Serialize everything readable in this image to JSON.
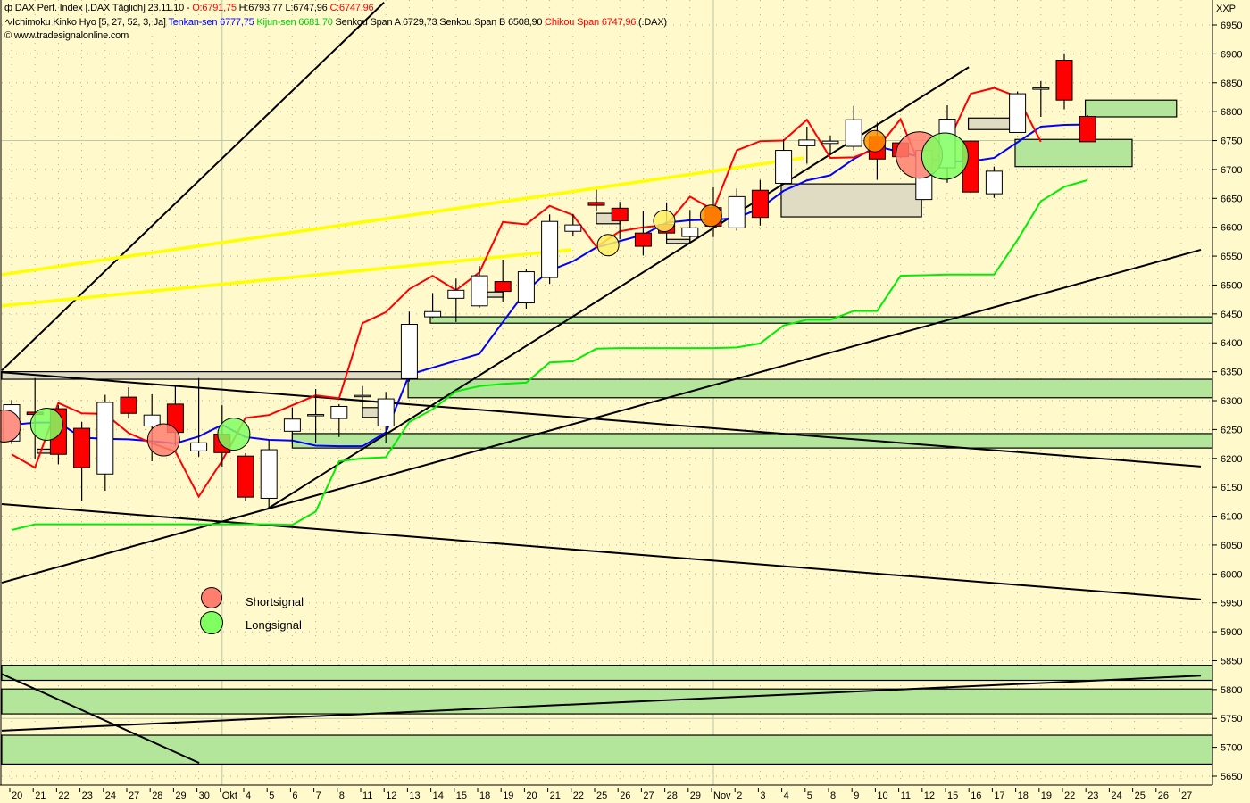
{
  "header": {
    "symbol_line": {
      "prefix": "DAX Perf. Index [.DAX  Täglich] 23.11.10 - ",
      "open": "O:6791,75",
      "high": " H:6793,77 L:6747,96 ",
      "close": "C:6747,96"
    },
    "indicator_line": {
      "name": "Ichimoku Kinko Hyo [5, 27, 52, 3, Ja] ",
      "tenkan": "Tenkan-sen 6777,75",
      "kijun": " Kijun-sen 6681,70",
      "senkou": " Senkou Span A 6729,73 Senkou Span B 6508,90 ",
      "chikou": "Chikou Span 6747,96",
      "suffix": " (.DAX)"
    },
    "copyright": "www.tradesignalonline.com"
  },
  "axis_corner_label": "XXP",
  "legend": {
    "short": "Shortsignal",
    "long": "Longsignal"
  },
  "chart_data": {
    "type": "candlestick",
    "title": "DAX Perf. Index [.DAX  Täglich]",
    "ylim": [
      5640,
      6960
    ],
    "y_ticks": [
      6950,
      6900,
      6850,
      6800,
      6750,
      6700,
      6650,
      6600,
      6550,
      6500,
      6450,
      6400,
      6350,
      6300,
      6250,
      6200,
      6150,
      6100,
      6050,
      6000,
      5950,
      5900,
      5850,
      5800,
      5750,
      5700,
      5650
    ],
    "x_labels": [
      "20",
      "21",
      "22",
      "23",
      "24",
      "27",
      "28",
      "29",
      "30",
      "Okt",
      "4",
      "5",
      "6",
      "7",
      "8",
      "11",
      "12",
      "13",
      "14",
      "15",
      "18",
      "19",
      "20",
      "21",
      "22",
      "25",
      "26",
      "27",
      "28",
      "29",
      "Nov",
      "2",
      "3",
      "4",
      "5",
      "8",
      "9",
      "10",
      "11",
      "12",
      "15",
      "16",
      "17",
      "18",
      "19",
      "22",
      "23",
      "24",
      "25",
      "26",
      "27"
    ],
    "grid": true,
    "colors": {
      "background": "#FFF9CC",
      "up_candle": "#FFFFFF",
      "down_candle": "#FF0000",
      "tenkan": "#0000FF",
      "kijun": "#00EE00",
      "chikou": "#FF0000",
      "zone_green": "#B3E69A",
      "zone_gray": "#E0DCC4",
      "trendline": "#000000",
      "yellow_line": "#FFFF00",
      "short_signal": "#FF7F6E",
      "long_signal": "#80FF60",
      "yellow_signal": "#FFF060",
      "orange_signal": "#FF9000"
    },
    "candles_ohlc": [
      [
        6230,
        6301,
        6225,
        6293
      ],
      [
        6280,
        6339,
        6198,
        6276
      ],
      [
        6286,
        6292,
        6190,
        6207
      ],
      [
        6252,
        6263,
        6127,
        6184
      ],
      [
        6173,
        6310,
        6144,
        6297
      ],
      [
        6306,
        6323,
        6269,
        6278
      ],
      [
        6256,
        6311,
        6195,
        6275
      ],
      [
        6294,
        6325,
        6221,
        6245
      ],
      [
        6213,
        6339,
        6203,
        6227
      ],
      [
        6242,
        6292,
        6186,
        6210
      ],
      [
        6204,
        6209,
        6126,
        6133
      ],
      [
        6131,
        6232,
        6113,
        6215
      ],
      [
        6247,
        6288,
        6224,
        6268
      ],
      [
        6274,
        6320,
        6226,
        6276
      ],
      [
        6269,
        6294,
        6237,
        6290
      ],
      [
        6307,
        6325,
        6271,
        6309
      ],
      [
        6256,
        6315,
        6226,
        6303
      ],
      [
        6338,
        6454,
        6333,
        6432
      ],
      [
        6445,
        6486,
        6443,
        6454
      ],
      [
        6477,
        6511,
        6436,
        6491
      ],
      [
        6464,
        6533,
        6461,
        6516
      ],
      [
        6506,
        6544,
        6470,
        6489
      ],
      [
        6469,
        6527,
        6459,
        6523
      ],
      [
        6513,
        6622,
        6502,
        6610
      ],
      [
        6593,
        6623,
        6584,
        6604
      ],
      [
        6643,
        6665,
        6627,
        6638
      ],
      [
        6633,
        6644,
        6579,
        6611
      ],
      [
        6590,
        6628,
        6551,
        6567
      ],
      [
        6605,
        6643,
        6578,
        6590
      ],
      [
        6584,
        6630,
        6572,
        6599
      ],
      [
        6634,
        6669,
        6583,
        6602
      ],
      [
        6599,
        6667,
        6594,
        6653
      ],
      [
        6664,
        6682,
        6603,
        6617
      ],
      [
        6676,
        6752,
        6674,
        6733
      ],
      [
        6741,
        6774,
        6710,
        6751
      ],
      [
        6745,
        6759,
        6726,
        6749
      ],
      [
        6740,
        6810,
        6733,
        6786
      ],
      [
        6757,
        6781,
        6682,
        6718
      ],
      [
        6746,
        6749,
        6720,
        6722
      ],
      [
        6648,
        6741,
        6648,
        6733
      ],
      [
        6703,
        6811,
        6677,
        6787
      ],
      [
        6749,
        6750,
        6660,
        6661
      ],
      [
        6658,
        6705,
        6651,
        6697
      ],
      [
        6764,
        6835,
        6764,
        6831
      ],
      [
        6839,
        6853,
        6791,
        6841
      ],
      [
        6889,
        6901,
        6804,
        6820
      ],
      [
        6791.75,
        6793.77,
        6747.96,
        6747.96
      ]
    ],
    "series": [
      {
        "name": "Tenkan-sen",
        "color": "#0000FF",
        "values": [
          6258,
          6262,
          6262,
          6236,
          6234,
          6233,
          6230,
          6226,
          6238,
          6258,
          6237,
          6232,
          6231,
          6222,
          6221,
          6221,
          6245,
          6345,
          6357,
          6369,
          6381,
          6436,
          6490,
          6525,
          6541,
          6565,
          6576,
          6587,
          6608,
          6612,
          6613,
          6616,
          6633,
          6663,
          6681,
          6690,
          6718,
          6740,
          6730,
          6720,
          6714,
          6714,
          6720,
          6747,
          6774,
          6777,
          6777.75
        ]
      },
      {
        "name": "Kijun-sen",
        "color": "#00EE00",
        "values": [
          6076,
          6086,
          6086,
          6086,
          6086,
          6086,
          6086,
          6086,
          6086,
          6086,
          6086,
          6086,
          6085,
          6108,
          6195,
          6200,
          6202,
          6263,
          6285,
          6316,
          6325,
          6329,
          6331,
          6366,
          6368,
          6390,
          6391,
          6391,
          6391,
          6391,
          6391,
          6392,
          6399,
          6430,
          6440,
          6440,
          6455,
          6455,
          6516,
          6517,
          6518,
          6518,
          6518,
          6578,
          6645,
          6670,
          6681.7
        ]
      },
      {
        "name": "Chikou Span",
        "color": "#FF0000",
        "values": [
          6207,
          6184,
          6296,
          6278,
          6277,
          6244,
          6226,
          6212,
          6134,
          6196,
          6270,
          6275,
          6292,
          6309,
          6304,
          6434,
          6453,
          6493,
          6516,
          6491,
          6522,
          6609,
          6605,
          6637,
          6621,
          6566,
          6593,
          6600,
          6604,
          6653,
          6630,
          6733,
          6749,
          6750,
          6786,
          6720,
          6721,
          6736,
          6787,
          6690,
          6744,
          6831,
          6841,
          6826,
          6747.96
        ]
      }
    ],
    "zones": [
      {
        "kind": "green",
        "from": -0.5,
        "to": "end",
        "top": 5842,
        "bottom": 5816
      },
      {
        "kind": "green",
        "from": -0.5,
        "to": "end",
        "top": 5801,
        "bottom": 5758
      },
      {
        "kind": "green",
        "from": -0.5,
        "to": "end",
        "top": 5721,
        "bottom": 5671
      },
      {
        "kind": "gray",
        "from": -0.5,
        "to": 16.95,
        "top": 6350,
        "bottom": 6337
      },
      {
        "kind": "green",
        "from": 16.95,
        "to": "end",
        "top": 6337,
        "bottom": 6305
      },
      {
        "kind": "green",
        "from": 12,
        "to": "end",
        "top": 6243,
        "bottom": 6218
      },
      {
        "kind": "green",
        "from": 17.9,
        "to": "end",
        "top": 6445,
        "bottom": 6434
      },
      {
        "kind": "gray",
        "from": 32.9,
        "to": 38.9,
        "top": 6675,
        "bottom": 6618
      },
      {
        "kind": "gray",
        "from": 40.9,
        "to": 42.9,
        "top": 6789,
        "bottom": 6769
      },
      {
        "kind": "green",
        "from": 42.9,
        "to": 47.9,
        "top": 6752,
        "bottom": 6705
      },
      {
        "kind": "green",
        "from": 45.9,
        "to": 49.8,
        "top": 6820,
        "bottom": 6791
      },
      {
        "kind": "gray",
        "from": 1.1,
        "to": 2.1,
        "top": 6216,
        "bottom": 6209
      },
      {
        "kind": "gray",
        "from": 15,
        "to": 16,
        "top": 6288,
        "bottom": 6271
      },
      {
        "kind": "gray",
        "from": 20,
        "to": 21,
        "top": 6488,
        "bottom": 6479
      },
      {
        "kind": "gray",
        "from": 25,
        "to": 26,
        "top": 6624,
        "bottom": 6606
      },
      {
        "kind": "gray",
        "from": 28,
        "to": 29,
        "top": 6579,
        "bottom": 6572
      }
    ],
    "trendlines": [
      {
        "color": "black",
        "from": [
          -0.42,
          6352
        ],
        "to": [
          15.92,
          6989
        ]
      },
      {
        "color": "black",
        "from": [
          10.95,
          6113
        ],
        "to": [
          40.92,
          6877
        ]
      },
      {
        "color": "black",
        "from": [
          -0.42,
          5985
        ],
        "to": [
          50.84,
          6561
        ]
      },
      {
        "color": "black",
        "from": [
          -0.42,
          6349
        ],
        "to": [
          50.84,
          6186
        ]
      },
      {
        "color": "black",
        "from": [
          -0.42,
          6121
        ],
        "to": [
          50.84,
          5956
        ]
      },
      {
        "color": "black",
        "from": [
          -0.42,
          5827
        ],
        "to": [
          8.02,
          5673
        ]
      },
      {
        "color": "black",
        "from": [
          -0.42,
          5729
        ],
        "to": [
          50.84,
          5824
        ]
      },
      {
        "color": "yellow",
        "from": [
          -0.42,
          6518
        ],
        "to": [
          33.85,
          6720
        ]
      },
      {
        "color": "yellow",
        "from": [
          -0.42,
          6464
        ],
        "to": [
          23.93,
          6561
        ]
      }
    ],
    "signals": [
      {
        "type": "short",
        "at": [
          -0.3,
          6256
        ],
        "size": "medium"
      },
      {
        "type": "short",
        "at": [
          6.5,
          6232
        ],
        "size": "medium"
      },
      {
        "type": "short",
        "at": [
          38.8,
          6725
        ],
        "size": "large"
      },
      {
        "type": "long",
        "at": [
          1.5,
          6259
        ],
        "size": "medium"
      },
      {
        "type": "long",
        "at": [
          9.5,
          6242
        ],
        "size": "medium"
      },
      {
        "type": "long",
        "at": [
          39.9,
          6723
        ],
        "size": "large"
      },
      {
        "type": "yellow",
        "at": [
          25.5,
          6569
        ],
        "size": "small"
      },
      {
        "type": "yellow",
        "at": [
          27.9,
          6611
        ],
        "size": "small"
      },
      {
        "type": "orange",
        "at": [
          29.9,
          6620
        ],
        "size": "small"
      },
      {
        "type": "orange",
        "at": [
          36.9,
          6749
        ],
        "size": "small"
      }
    ]
  }
}
